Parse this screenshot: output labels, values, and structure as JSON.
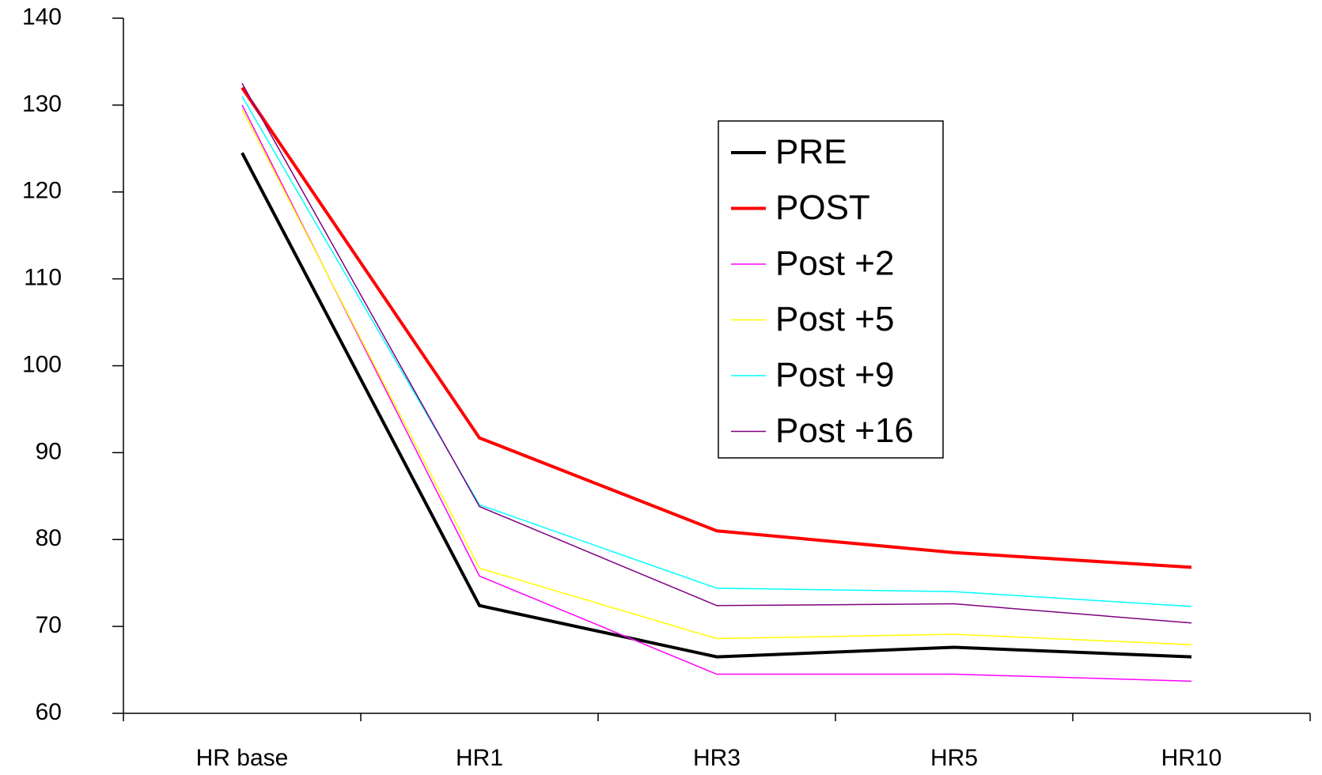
{
  "chart_data": {
    "type": "line",
    "categories": [
      "HR base",
      "HR1",
      "HR3",
      "HR5",
      "HR10"
    ],
    "series": [
      {
        "name": "PRE",
        "color": "#000000",
        "width": 4,
        "values": [
          124.5,
          72.4,
          66.5,
          67.6,
          66.5
        ]
      },
      {
        "name": "POST",
        "color": "#ff0000",
        "width": 4,
        "values": [
          132,
          91.7,
          81,
          78.5,
          76.8
        ]
      },
      {
        "name": "Post +2",
        "color": "#ff00ff",
        "width": 1.5,
        "values": [
          130,
          75.8,
          64.5,
          64.5,
          63.7
        ]
      },
      {
        "name": "Post +5",
        "color": "#ffff00",
        "width": 1.5,
        "values": [
          129.5,
          76.7,
          68.6,
          69.1,
          67.9
        ]
      },
      {
        "name": "Post +9",
        "color": "#00ffff",
        "width": 1.5,
        "values": [
          131,
          84,
          74.4,
          74,
          72.3
        ]
      },
      {
        "name": "Post +16",
        "color": "#800080",
        "width": 1.5,
        "values": [
          132.5,
          83.8,
          72.4,
          72.6,
          70.4
        ]
      }
    ],
    "ylim": [
      60,
      140
    ],
    "yticks": [
      60,
      70,
      80,
      90,
      100,
      110,
      120,
      130,
      140
    ]
  }
}
